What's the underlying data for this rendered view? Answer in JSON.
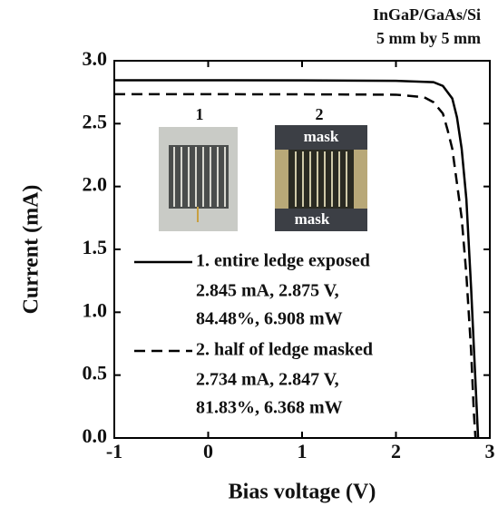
{
  "chart_data": {
    "type": "line",
    "annotations": [
      "InGaP/GaAs/Si",
      "5 mm by 5 mm"
    ],
    "image_labels": [
      "1",
      "2",
      "mask",
      "mask"
    ],
    "xlabel": "Bias voltage (V)",
    "ylabel": "Current (mA)",
    "xlim": [
      -1,
      3
    ],
    "ylim": [
      0,
      3
    ],
    "xticks": [
      -1,
      0,
      1,
      2,
      3
    ],
    "yticks": [
      {
        "value": 0,
        "label": "0.0"
      },
      {
        "value": 0.5,
        "label": "0.5"
      },
      {
        "value": 1,
        "label": "1.0"
      },
      {
        "value": 1.5,
        "label": "1.5"
      },
      {
        "value": 2,
        "label": "2.0"
      },
      {
        "value": 2.5,
        "label": "2.5"
      },
      {
        "value": 3,
        "label": "3.0"
      }
    ],
    "series": [
      {
        "name": "1. entire ledge exposed",
        "details": [
          "2.845 mA, 2.875 V,",
          "84.48%, 6.908 mW"
        ],
        "color": "#000000",
        "linestyle": "solid",
        "x": [
          -1,
          0,
          1,
          2,
          2.4,
          2.5,
          2.6,
          2.65,
          2.7,
          2.75,
          2.8,
          2.85,
          2.875
        ],
        "values": [
          2.845,
          2.845,
          2.844,
          2.84,
          2.83,
          2.8,
          2.7,
          2.55,
          2.3,
          1.9,
          1.2,
          0.4,
          0
        ]
      },
      {
        "name": "2. half of ledge masked",
        "details": [
          "2.734 mA, 2.847 V,",
          "81.83%, 6.368 mW"
        ],
        "color": "#000000",
        "linestyle": "dashed",
        "x": [
          -1,
          0,
          1,
          2,
          2.3,
          2.4,
          2.5,
          2.55,
          2.6,
          2.7,
          2.75,
          2.8,
          2.83,
          2.847
        ],
        "values": [
          2.734,
          2.734,
          2.733,
          2.73,
          2.71,
          2.67,
          2.58,
          2.45,
          2.3,
          1.75,
          1.3,
          0.7,
          0.2,
          0
        ]
      }
    ]
  }
}
